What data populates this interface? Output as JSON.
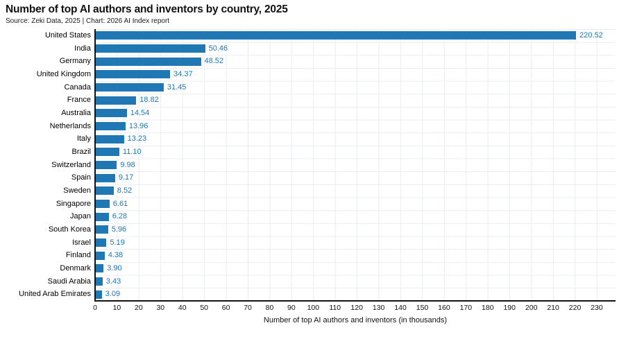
{
  "header": {
    "title": "Number of top AI authors and inventors by country, 2025",
    "source": "Source: Zeki Data, 2025 | Chart: 2026 AI Index report"
  },
  "chart_data": {
    "type": "bar",
    "orientation": "horizontal",
    "title": "Number of top AI authors and inventors by country, 2025",
    "source": "Source: Zeki Data, 2025 | Chart: 2026 AI Index report",
    "xlabel": "Number of top AI authors and inventors (in thousands)",
    "categories": [
      "United States",
      "India",
      "Germany",
      "United Kingdom",
      "Canada",
      "France",
      "Australia",
      "Netherlands",
      "Italy",
      "Brazil",
      "Switzerland",
      "Spain",
      "Sweden",
      "Singapore",
      "Japan",
      "South Korea",
      "Israel",
      "Finland",
      "Denmark",
      "Saudi Arabia",
      "United Arab Emirates"
    ],
    "values": [
      220.52,
      50.46,
      48.52,
      34.37,
      31.45,
      18.82,
      14.54,
      13.96,
      13.23,
      11.1,
      9.98,
      9.17,
      8.52,
      6.61,
      6.28,
      5.96,
      5.19,
      4.38,
      3.9,
      3.43,
      3.09
    ],
    "value_labels": [
      "220.52",
      "50.46",
      "48.52",
      "34.37",
      "31.45",
      "18.82",
      "14.54",
      "13.96",
      "13.23",
      "11.10",
      "9.98",
      "9.17",
      "8.52",
      "6.61",
      "6.28",
      "5.96",
      "5.19",
      "4.38",
      "3.90",
      "3.43",
      "3.09"
    ],
    "xticks": [
      0,
      10,
      20,
      30,
      40,
      50,
      60,
      70,
      80,
      90,
      100,
      110,
      120,
      130,
      140,
      150,
      160,
      170,
      180,
      190,
      200,
      210,
      220,
      230
    ],
    "xlim": [
      0,
      238.6
    ],
    "grid": true,
    "legend": "none",
    "colors": {
      "bar": "#1f77b4",
      "value_label": "#1f77b4",
      "grid": "#e9edf1",
      "axis": "#111111",
      "text": "#000000"
    }
  }
}
